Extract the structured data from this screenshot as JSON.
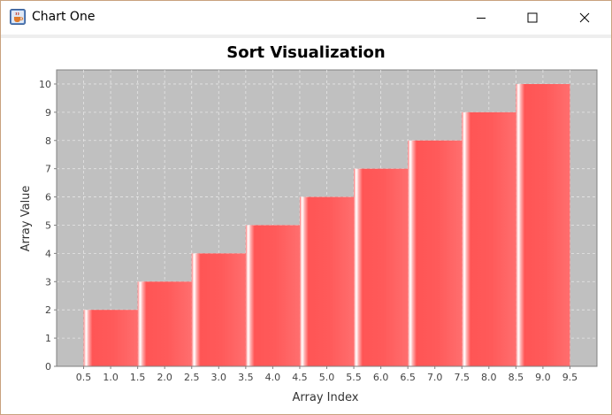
{
  "window": {
    "title": "Chart One",
    "icons": {
      "app": "java-coffee-cup-icon",
      "minimize": "minimize-icon",
      "maximize": "maximize-icon",
      "close": "close-icon"
    }
  },
  "chart_data": {
    "type": "bar",
    "title": "Sort Visualization",
    "xlabel": "Array Index",
    "ylabel": "Array Value",
    "categories": [
      "1",
      "2",
      "3",
      "4",
      "5",
      "6",
      "7",
      "8",
      "9"
    ],
    "values": [
      2,
      3,
      4,
      5,
      6,
      7,
      8,
      9,
      10
    ],
    "bar_start": [
      0.5,
      1.5,
      2.5,
      3.5,
      4.5,
      5.5,
      6.5,
      7.5,
      8.5
    ],
    "bar_end": [
      1.5,
      2.5,
      3.5,
      4.5,
      5.5,
      6.5,
      7.5,
      8.5,
      9.5
    ],
    "xlim": [
      0.0,
      10.0
    ],
    "ylim": [
      0,
      10.5
    ],
    "x_ticks": [
      "0.5",
      "1.0",
      "1.5",
      "2.0",
      "2.5",
      "3.0",
      "3.5",
      "4.0",
      "4.5",
      "5.0",
      "5.5",
      "6.0",
      "6.5",
      "7.0",
      "7.5",
      "8.0",
      "8.5",
      "9.0",
      "9.5"
    ],
    "y_ticks": [
      "0",
      "1",
      "2",
      "3",
      "4",
      "5",
      "6",
      "7",
      "8",
      "9",
      "10"
    ],
    "grid": true,
    "legend": "none",
    "colors": {
      "bar": "#ff5c5c",
      "bar_highlight": "#ffffff",
      "plot_background": "#c0c0c0",
      "grid": "#e6e6e6"
    }
  }
}
